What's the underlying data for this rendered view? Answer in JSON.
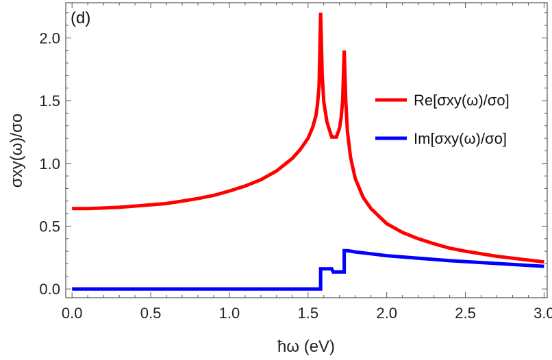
{
  "chart_data": {
    "type": "line",
    "panel_label": "(d)",
    "xlabel": "ħω (eV)",
    "ylabel": "σxy(ω)/σo",
    "xlim": [
      -0.04,
      3.02
    ],
    "ylim": [
      -0.07,
      2.28
    ],
    "x_ticks": [
      "0.0",
      "0.5",
      "1.0",
      "1.5",
      "2.0",
      "2.5",
      "3.0"
    ],
    "y_ticks": [
      "0.0",
      "0.5",
      "1.0",
      "1.5",
      "2.0"
    ],
    "legend_position": "top-right",
    "series": [
      {
        "name": "Re[σxy(ω)/σo]",
        "color": "#ff0000",
        "x": [
          0.0,
          0.1,
          0.2,
          0.3,
          0.4,
          0.5,
          0.6,
          0.7,
          0.8,
          0.9,
          1.0,
          1.1,
          1.2,
          1.3,
          1.4,
          1.45,
          1.5,
          1.53,
          1.55,
          1.56,
          1.57,
          1.58,
          1.59,
          1.6,
          1.62,
          1.65,
          1.68,
          1.7,
          1.71,
          1.72,
          1.73,
          1.74,
          1.75,
          1.77,
          1.8,
          1.85,
          1.9,
          2.0,
          2.1,
          2.2,
          2.3,
          2.4,
          2.5,
          2.6,
          2.7,
          2.8,
          2.9,
          3.0
        ],
        "y": [
          0.64,
          0.64,
          0.645,
          0.65,
          0.66,
          0.67,
          0.68,
          0.7,
          0.72,
          0.745,
          0.78,
          0.82,
          0.87,
          0.94,
          1.04,
          1.11,
          1.2,
          1.29,
          1.38,
          1.47,
          1.62,
          2.2,
          1.7,
          1.49,
          1.33,
          1.21,
          1.21,
          1.28,
          1.36,
          1.5,
          1.9,
          1.5,
          1.26,
          1.05,
          0.88,
          0.73,
          0.64,
          0.52,
          0.45,
          0.4,
          0.36,
          0.325,
          0.3,
          0.28,
          0.26,
          0.245,
          0.23,
          0.215
        ]
      },
      {
        "name": "Im[σxy(ω)/σo]",
        "color": "#0000ff",
        "x": [
          0.0,
          1.58,
          1.58,
          1.65,
          1.66,
          1.73,
          1.73,
          1.75,
          1.8,
          1.9,
          2.0,
          2.2,
          2.4,
          2.6,
          2.8,
          3.0
        ],
        "y": [
          0.0,
          0.0,
          0.16,
          0.16,
          0.135,
          0.135,
          0.305,
          0.305,
          0.295,
          0.28,
          0.265,
          0.245,
          0.225,
          0.21,
          0.195,
          0.18
        ]
      }
    ]
  }
}
